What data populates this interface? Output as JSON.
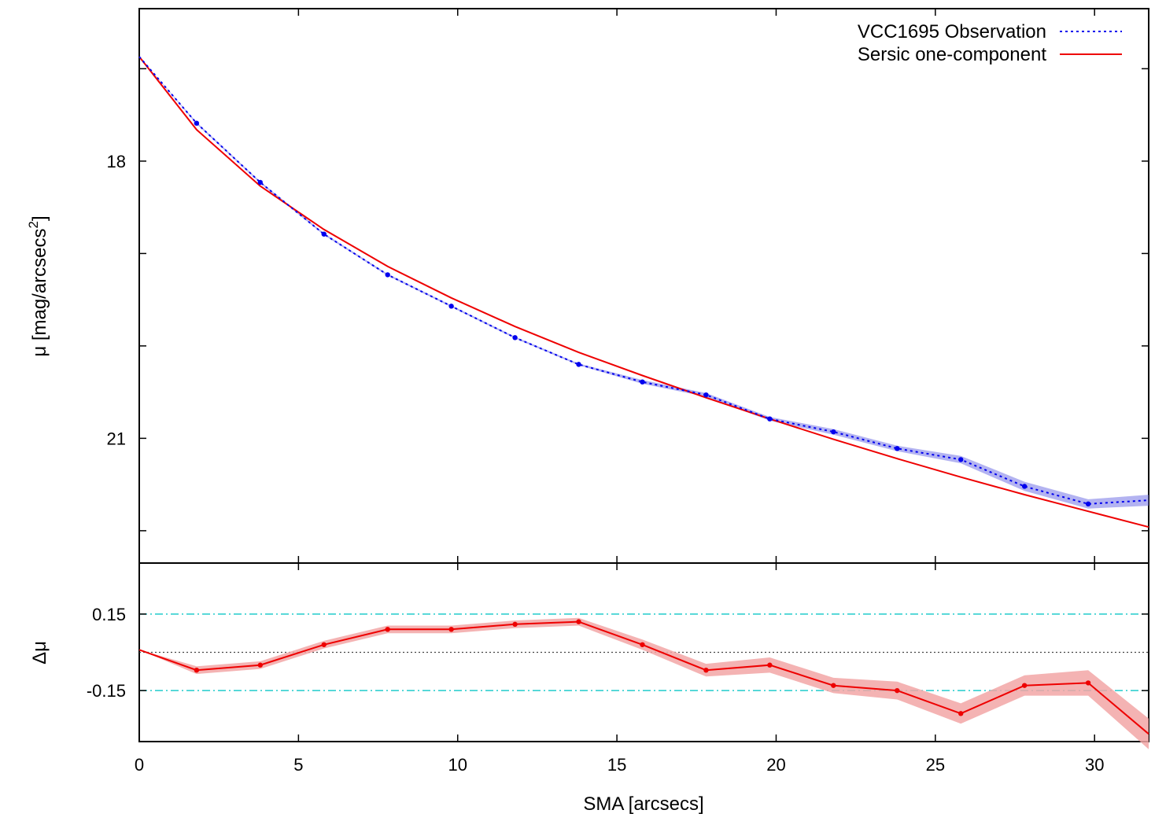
{
  "chart_data": {
    "type": "line",
    "title": "",
    "xlabel": "SMA [arcsecs]",
    "x_ticks": [
      "0",
      "5",
      "10",
      "15",
      "20",
      "25",
      "30"
    ],
    "xlim": [
      0,
      31.7
    ],
    "panels": [
      {
        "name": "profile",
        "ylabel": "μ [mag/arcsecs²]",
        "ylabel_base": "μ [mag/arcsecs",
        "ylabel_sup": "2",
        "ylim_top": 16.35,
        "ylim_bottom": 22.35,
        "y_ticks_labeled": [
          "18",
          "21"
        ],
        "y_ticks_all": [
          17,
          18,
          19,
          20,
          21,
          22
        ],
        "inverted": true,
        "legend_position": "top-right",
        "series": [
          {
            "name": "VCC1695 Observation",
            "style": "dotted-with-points",
            "color": "#0000ee",
            "band_color": "#8080e8",
            "x": [
              0,
              1.8,
              3.8,
              5.8,
              7.8,
              9.8,
              11.8,
              13.8,
              15.8,
              17.8,
              19.8,
              21.8,
              23.8,
              25.8,
              27.8,
              29.8,
              31.7
            ],
            "y": [
              16.87,
              17.59,
              18.23,
              18.79,
              19.23,
              19.57,
              19.91,
              20.2,
              20.39,
              20.53,
              20.79,
              20.93,
              21.11,
              21.23,
              21.52,
              21.71,
              21.67
            ],
            "band": [
              0,
              0.01,
              0.01,
              0.01,
              0.01,
              0.01,
              0.01,
              0.01,
              0.02,
              0.02,
              0.02,
              0.03,
              0.03,
              0.04,
              0.05,
              0.05,
              0.06
            ]
          },
          {
            "name": "Sersic one-component",
            "style": "solid",
            "color": "#ee0000",
            "x": [
              0,
              1.8,
              3.8,
              5.8,
              7.8,
              9.8,
              11.8,
              13.8,
              15.8,
              17.8,
              19.8,
              21.8,
              23.8,
              25.8,
              27.8,
              29.8,
              31.7
            ],
            "y": [
              16.87,
              17.66,
              18.27,
              18.74,
              19.14,
              19.48,
              19.79,
              20.07,
              20.32,
              20.56,
              20.79,
              21.01,
              21.22,
              21.42,
              21.61,
              21.79,
              21.96
            ]
          }
        ]
      },
      {
        "name": "residuals",
        "ylabel": "Δμ",
        "ylim": [
          -0.35,
          0.35
        ],
        "y_ticks_labeled": [
          "0.15",
          "-0.15"
        ],
        "y_ticks_all": [
          0.15,
          -0.15
        ],
        "reference_lines": [
          {
            "value": 0.15,
            "style": "dash-dot",
            "color": "#20cccc"
          },
          {
            "value": -0.15,
            "style": "dash-dot",
            "color": "#20cccc"
          },
          {
            "value": 0,
            "style": "dotted",
            "color": "#444444"
          }
        ],
        "series": [
          {
            "name": "residual",
            "style": "solid-with-points",
            "color": "#ee0000",
            "band_color": "#f2a6a6",
            "x": [
              0,
              1.8,
              3.8,
              5.8,
              7.8,
              9.8,
              11.8,
              13.8,
              15.8,
              17.8,
              19.8,
              21.8,
              23.8,
              25.8,
              27.8,
              29.8,
              31.7
            ],
            "y": [
              0.01,
              -0.07,
              -0.05,
              0.03,
              0.09,
              0.09,
              0.11,
              0.12,
              0.03,
              -0.07,
              -0.05,
              -0.13,
              -0.15,
              -0.24,
              -0.13,
              -0.12,
              -0.32
            ],
            "band": [
              0,
              0.015,
              0.015,
              0.015,
              0.015,
              0.015,
              0.015,
              0.015,
              0.02,
              0.025,
              0.03,
              0.03,
              0.035,
              0.04,
              0.04,
              0.05,
              0.06
            ]
          }
        ]
      }
    ]
  }
}
